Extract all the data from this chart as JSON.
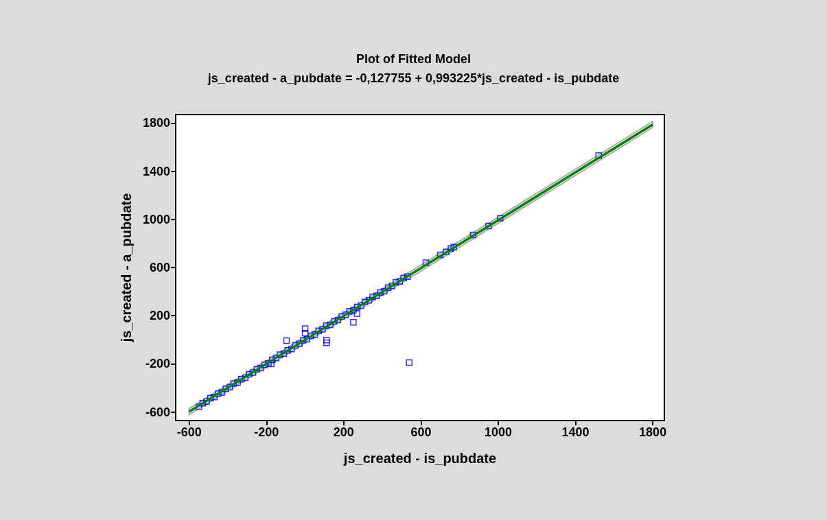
{
  "chart_data": {
    "type": "scatter",
    "title": "Plot of Fitted Model",
    "subtitle": "js_created - a_pubdate = -0,127755 + 0,993225*js_created - is_pubdate",
    "xlabel": "js_created - is_pubdate",
    "ylabel": "js_created - a_pubdate",
    "xlim": [
      -670,
      1860
    ],
    "ylim": [
      -670,
      1870
    ],
    "xticks": [
      -600,
      -200,
      200,
      600,
      1000,
      1400,
      1800
    ],
    "yticks": [
      -600,
      -200,
      200,
      600,
      1000,
      1400,
      1800
    ],
    "grid": false,
    "series": [
      {
        "marker": "square",
        "color": "#0000ff",
        "x": [
          -550,
          -530,
          -510,
          -490,
          -470,
          -450,
          -430,
          -410,
          -390,
          -370,
          -350,
          -330,
          -310,
          -290,
          -270,
          -250,
          -230,
          -210,
          -190,
          -170,
          -150,
          -130,
          -110,
          -90,
          -70,
          -50,
          -30,
          -10,
          10,
          30,
          50,
          70,
          90,
          110,
          130,
          150,
          170,
          190,
          210,
          230,
          250,
          270,
          290,
          310,
          330,
          350,
          370,
          390,
          410,
          430,
          450,
          470,
          490,
          510,
          530,
          625,
          700,
          730,
          755,
          770,
          870,
          950,
          1010,
          1520,
          -96,
          0,
          0,
          111,
          111,
          250,
          269,
          539,
          -175
        ],
        "values": [
          -556,
          -526,
          -512,
          -483,
          -475,
          -447,
          -436,
          -406,
          -392,
          -363,
          -355,
          -327,
          -316,
          -286,
          -272,
          -243,
          -235,
          -207,
          -196,
          -166,
          -152,
          -123,
          -115,
          -87,
          -76,
          -46,
          -32,
          -3,
          5,
          33,
          44,
          74,
          88,
          117,
          125,
          153,
          164,
          194,
          208,
          237,
          245,
          273,
          284,
          314,
          328,
          357,
          365,
          393,
          404,
          434,
          448,
          477,
          485,
          513,
          524,
          640,
          705,
          730,
          760,
          770,
          870,
          945,
          1010,
          1530,
          -6,
          93,
          55,
          -2,
          -25,
          146,
          219,
          -189,
          -200
        ]
      },
      {
        "type": "line",
        "marker": "none",
        "color": "#008000",
        "x": [
          -600,
          1800
        ],
        "values": [
          -596,
          1788
        ],
        "lower": [
          -621,
          1763
        ],
        "upper": [
          -571,
          1813
        ]
      }
    ]
  }
}
